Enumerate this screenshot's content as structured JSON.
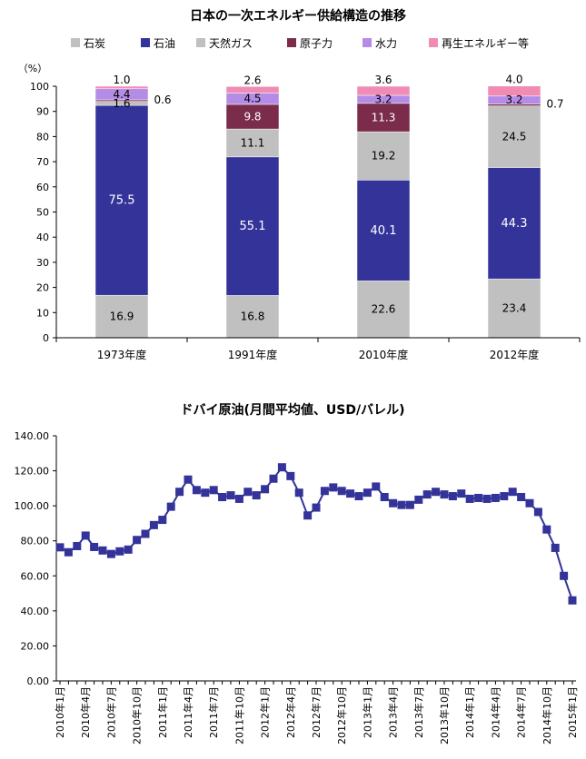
{
  "chart_data": [
    {
      "type": "bar",
      "stacked": true,
      "title": "日本の一次エネルギー供給構造の推移",
      "unit_label": "（%）",
      "categories": [
        "1973年度",
        "1991年度",
        "2010年度",
        "2012年度"
      ],
      "ylim": [
        0,
        100
      ],
      "yticks": [
        "0",
        "10",
        "20",
        "30",
        "40",
        "50",
        "60",
        "70",
        "80",
        "90",
        "100"
      ],
      "legend_position": "top",
      "series": [
        {
          "name": "石炭",
          "color": "#c0c0c0",
          "values": [
            16.9,
            16.8,
            22.6,
            23.4
          ]
        },
        {
          "name": "石油",
          "color": "#333399",
          "values": [
            75.5,
            55.1,
            40.1,
            44.3
          ]
        },
        {
          "name": "天然ガス",
          "color": "#c0c0c0",
          "values": [
            1.6,
            11.1,
            19.2,
            24.5
          ]
        },
        {
          "name": "原子力",
          "color": "#7b2c4b",
          "values": [
            0.6,
            9.8,
            11.3,
            0.7
          ]
        },
        {
          "name": "水力",
          "color": "#b48ce6",
          "values": [
            4.4,
            4.5,
            3.2,
            3.2
          ]
        },
        {
          "name": "再生エネルギー等",
          "color": "#f08cb4",
          "values": [
            1.0,
            2.6,
            3.6,
            4.0
          ]
        }
      ],
      "labels": [
        [
          "16.9",
          "75.5",
          "1.6",
          "0.6",
          "4.4",
          "1.0"
        ],
        [
          "16.8",
          "55.1",
          "11.1",
          "9.8",
          "4.5",
          "2.6"
        ],
        [
          "22.6",
          "40.1",
          "19.2",
          "11.3",
          "3.2",
          "3.6"
        ],
        [
          "23.4",
          "44.3",
          "24.5",
          "0.7",
          "3.2",
          "4.0"
        ]
      ]
    },
    {
      "type": "line",
      "title": "ドバイ原油(月間平均値、USD/バレル)",
      "color": "#333399",
      "ylim": [
        0,
        140
      ],
      "yticks": [
        "0.00",
        "20.00",
        "40.00",
        "60.00",
        "80.00",
        "100.00",
        "120.00",
        "140.00"
      ],
      "x": [
        "2010年1月",
        "2010年2月",
        "2010年3月",
        "2010年4月",
        "2010年5月",
        "2010年6月",
        "2010年7月",
        "2010年8月",
        "2010年9月",
        "2010年10月",
        "2010年11月",
        "2010年12月",
        "2011年1月",
        "2011年2月",
        "2011年3月",
        "2011年4月",
        "2011年5月",
        "2011年6月",
        "2011年7月",
        "2011年8月",
        "2011年9月",
        "2011年10月",
        "2011年11月",
        "2011年12月",
        "2012年1月",
        "2012年2月",
        "2012年3月",
        "2012年4月",
        "2012年5月",
        "2012年6月",
        "2012年7月",
        "2012年8月",
        "2012年9月",
        "2012年10月",
        "2012年11月",
        "2012年12月",
        "2013年1月",
        "2013年2月",
        "2013年3月",
        "2013年4月",
        "2013年5月",
        "2013年6月",
        "2013年7月",
        "2013年8月",
        "2013年9月",
        "2013年10月",
        "2013年11月",
        "2013年12月",
        "2014年1月",
        "2014年2月",
        "2014年3月",
        "2014年4月",
        "2014年5月",
        "2014年6月",
        "2014年7月",
        "2014年8月",
        "2014年9月",
        "2014年10月",
        "2014年11月",
        "2014年12月",
        "2015年1月"
      ],
      "values": [
        76.3,
        73.5,
        77.0,
        83.0,
        76.5,
        74.5,
        72.5,
        74.0,
        75.0,
        80.5,
        84.0,
        89.0,
        92.0,
        99.5,
        108.0,
        115.0,
        109.0,
        107.5,
        109.0,
        105.0,
        106.0,
        104.0,
        108.0,
        106.0,
        109.5,
        115.5,
        122.0,
        117.0,
        107.5,
        94.5,
        99.0,
        108.5,
        110.5,
        108.5,
        107.0,
        105.5,
        107.5,
        111.0,
        105.0,
        101.5,
        100.5,
        100.5,
        103.5,
        106.5,
        108.0,
        106.5,
        105.5,
        107.0,
        104.0,
        104.5,
        104.0,
        104.5,
        105.5,
        108.0,
        105.0,
        101.5,
        96.5,
        86.5,
        76.0,
        60.0,
        46.0
      ],
      "tick_labels": [
        "2010年1月",
        "2010年4月",
        "2010年7月",
        "2010年10月",
        "2011年1月",
        "2011年4月",
        "2011年7月",
        "2011年10月",
        "2012年1月",
        "2012年4月",
        "2012年7月",
        "2012年10月",
        "2013年1月",
        "2013年4月",
        "2013年7月",
        "2013年10月",
        "2014年1月",
        "2014年4月",
        "2014年7月",
        "2014年10月",
        "2015年1月"
      ]
    }
  ]
}
